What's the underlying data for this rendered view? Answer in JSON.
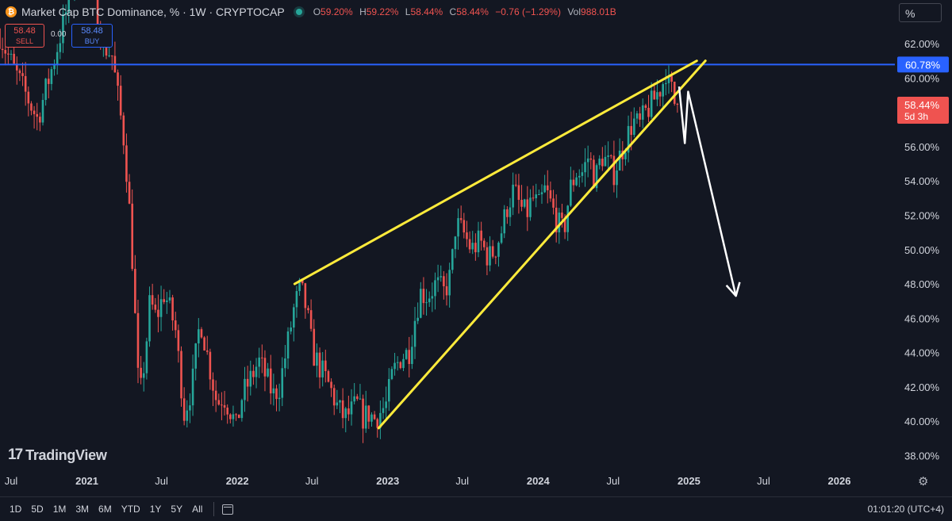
{
  "header": {
    "icon": "bitcoin-icon",
    "title": "Market Cap BTC Dominance, % · 1W · CRYPTOCAP",
    "ohlc": {
      "o_label": "O",
      "o": "59.20%",
      "h_label": "H",
      "h": "59.22%",
      "l_label": "L",
      "l": "58.44%",
      "c_label": "C",
      "c": "58.44%",
      "change": "−0.76 (−1.29%)",
      "vol_label": "Vol",
      "vol": "988.01B"
    }
  },
  "trade": {
    "sell_price": "58.48",
    "sell_label": "SELL",
    "spread": "0.00",
    "buy_price": "58.48",
    "buy_label": "BUY"
  },
  "unit_button": "%",
  "watermark": "TradingView",
  "bottom_bar": {
    "ranges": [
      "1D",
      "5D",
      "1M",
      "3M",
      "6M",
      "YTD",
      "1Y",
      "5Y",
      "All"
    ],
    "clock": "01:01:20 (UTC+4)"
  },
  "colors": {
    "bg": "#131722",
    "up": "#26a69a",
    "down": "#ef5350",
    "hline": "#2962ff",
    "trend": "#ffeb3b",
    "arrow": "#ffffff"
  },
  "chart_data": {
    "type": "candlestick",
    "title": "Market Cap BTC Dominance, % · 1W · CRYPTOCAP",
    "x_ticks": [
      {
        "date": "2020-07-01",
        "label": "Jul"
      },
      {
        "date": "2021-01-01",
        "label": "2021"
      },
      {
        "date": "2021-07-01",
        "label": "Jul"
      },
      {
        "date": "2022-01-01",
        "label": "2022"
      },
      {
        "date": "2022-07-01",
        "label": "Jul"
      },
      {
        "date": "2023-01-01",
        "label": "2023"
      },
      {
        "date": "2023-07-01",
        "label": "Jul"
      },
      {
        "date": "2024-01-01",
        "label": "2024"
      },
      {
        "date": "2024-07-01",
        "label": "Jul"
      },
      {
        "date": "2025-01-01",
        "label": "2025"
      },
      {
        "date": "2025-07-01",
        "label": "Jul"
      },
      {
        "date": "2026-01-01",
        "label": "2026"
      }
    ],
    "y_ticks": [
      "38.00%",
      "40.00%",
      "42.00%",
      "44.00%",
      "46.00%",
      "48.00%",
      "50.00%",
      "52.00%",
      "54.00%",
      "56.00%",
      "58.00%",
      "60.00%",
      "62.00%"
    ],
    "y_tick_values": [
      38,
      40,
      42,
      44,
      46,
      48,
      50,
      52,
      54,
      56,
      58,
      60,
      62
    ],
    "y_range": [
      37.4,
      63.2
    ],
    "price_path": [
      [
        "2020-06-01",
        63.0
      ],
      [
        "2020-07-15",
        60.5
      ],
      [
        "2020-09-10",
        57.6
      ],
      [
        "2020-10-20",
        61.0
      ],
      [
        "2020-11-20",
        64.0
      ],
      [
        "2020-12-20",
        68.0
      ],
      [
        "2021-01-15",
        66.0
      ],
      [
        "2021-02-15",
        62.0
      ],
      [
        "2021-03-10",
        61.3
      ],
      [
        "2021-04-10",
        56.0
      ],
      [
        "2021-04-25",
        51.0
      ],
      [
        "2021-05-15",
        41.0
      ],
      [
        "2021-05-30",
        44.0
      ],
      [
        "2021-06-10",
        47.0
      ],
      [
        "2021-06-25",
        46.0
      ],
      [
        "2021-07-15",
        47.5
      ],
      [
        "2021-08-10",
        45.5
      ],
      [
        "2021-09-01",
        40.5
      ],
      [
        "2021-09-20",
        42.0
      ],
      [
        "2021-10-10",
        46.0
      ],
      [
        "2021-10-30",
        43.5
      ],
      [
        "2021-11-20",
        41.0
      ],
      [
        "2021-12-05",
        41.5
      ],
      [
        "2021-12-25",
        40.5
      ],
      [
        "2022-01-05",
        39.6
      ],
      [
        "2022-01-20",
        41.5
      ],
      [
        "2022-02-10",
        42.5
      ],
      [
        "2022-03-01",
        43.5
      ],
      [
        "2022-03-20",
        42.5
      ],
      [
        "2022-04-05",
        41.5
      ],
      [
        "2022-04-20",
        42.0
      ],
      [
        "2022-05-10",
        44.5
      ],
      [
        "2022-05-25",
        46.5
      ],
      [
        "2022-06-10",
        47.8
      ],
      [
        "2022-06-25",
        46.5
      ],
      [
        "2022-07-10",
        44.0
      ],
      [
        "2022-07-30",
        43.0
      ],
      [
        "2022-08-20",
        42.0
      ],
      [
        "2022-09-10",
        40.7
      ],
      [
        "2022-09-25",
        40.2
      ],
      [
        "2022-10-10",
        40.5
      ],
      [
        "2022-10-25",
        41.0
      ],
      [
        "2022-11-10",
        40.2
      ],
      [
        "2022-11-25",
        40.5
      ],
      [
        "2022-12-05",
        40.1
      ],
      [
        "2022-12-20",
        40.5
      ],
      [
        "2023-01-05",
        41.0
      ],
      [
        "2023-01-20",
        42.8
      ],
      [
        "2023-02-10",
        43.8
      ],
      [
        "2023-02-28",
        44.0
      ],
      [
        "2023-03-15",
        46.0
      ],
      [
        "2023-03-28",
        47.5
      ],
      [
        "2023-04-15",
        47.3
      ],
      [
        "2023-05-05",
        48.0
      ],
      [
        "2023-05-25",
        47.5
      ],
      [
        "2023-06-10",
        48.5
      ],
      [
        "2023-06-22",
        51.5
      ],
      [
        "2023-07-10",
        51.0
      ],
      [
        "2023-07-30",
        50.0
      ],
      [
        "2023-08-20",
        50.5
      ],
      [
        "2023-09-10",
        49.5
      ],
      [
        "2023-09-25",
        50.0
      ],
      [
        "2023-10-10",
        51.0
      ],
      [
        "2023-10-25",
        52.5
      ],
      [
        "2023-11-10",
        53.5
      ],
      [
        "2023-11-25",
        52.5
      ],
      [
        "2023-12-10",
        52.0
      ],
      [
        "2023-12-25",
        53.0
      ],
      [
        "2024-01-10",
        52.5
      ],
      [
        "2024-01-25",
        53.5
      ],
      [
        "2024-02-10",
        52.5
      ],
      [
        "2024-02-25",
        51.5
      ],
      [
        "2024-03-10",
        51.0
      ],
      [
        "2024-03-25",
        53.5
      ],
      [
        "2024-04-10",
        54.5
      ],
      [
        "2024-04-25",
        54.5
      ],
      [
        "2024-05-10",
        55.5
      ],
      [
        "2024-05-25",
        54.0
      ],
      [
        "2024-06-10",
        55.5
      ],
      [
        "2024-06-25",
        55.0
      ],
      [
        "2024-07-10",
        54.5
      ],
      [
        "2024-07-25",
        55.5
      ],
      [
        "2024-08-10",
        56.5
      ],
      [
        "2024-08-25",
        57.5
      ],
      [
        "2024-09-10",
        57.2
      ],
      [
        "2024-09-25",
        58.0
      ],
      [
        "2024-10-10",
        58.5
      ],
      [
        "2024-10-25",
        59.2
      ],
      [
        "2024-11-05",
        59.6
      ],
      [
        "2024-11-12",
        60.6
      ],
      [
        "2024-11-20",
        59.5
      ],
      [
        "2024-11-28",
        59.2
      ],
      [
        "2024-12-05",
        58.44
      ]
    ],
    "last_candle_date": "2024-12-05",
    "horizontal_line": {
      "value": 60.78,
      "label": "60.78%"
    },
    "last_price": {
      "value": 58.44,
      "label": "58.44%",
      "countdown": "5d 3h"
    },
    "annotations": {
      "wedge_upper": [
        [
          "2022-05-20",
          48.0
        ],
        [
          "2025-01-20",
          61.0
        ]
      ],
      "wedge_lower": [
        [
          "2022-12-10",
          39.6
        ],
        [
          "2025-02-10",
          61.0
        ]
      ],
      "projection_arrow": [
        [
          "2024-12-08",
          59.5
        ],
        [
          "2024-12-22",
          56.2
        ],
        [
          "2024-12-30",
          59.2
        ],
        [
          "2025-04-25",
          47.3
        ]
      ]
    }
  }
}
